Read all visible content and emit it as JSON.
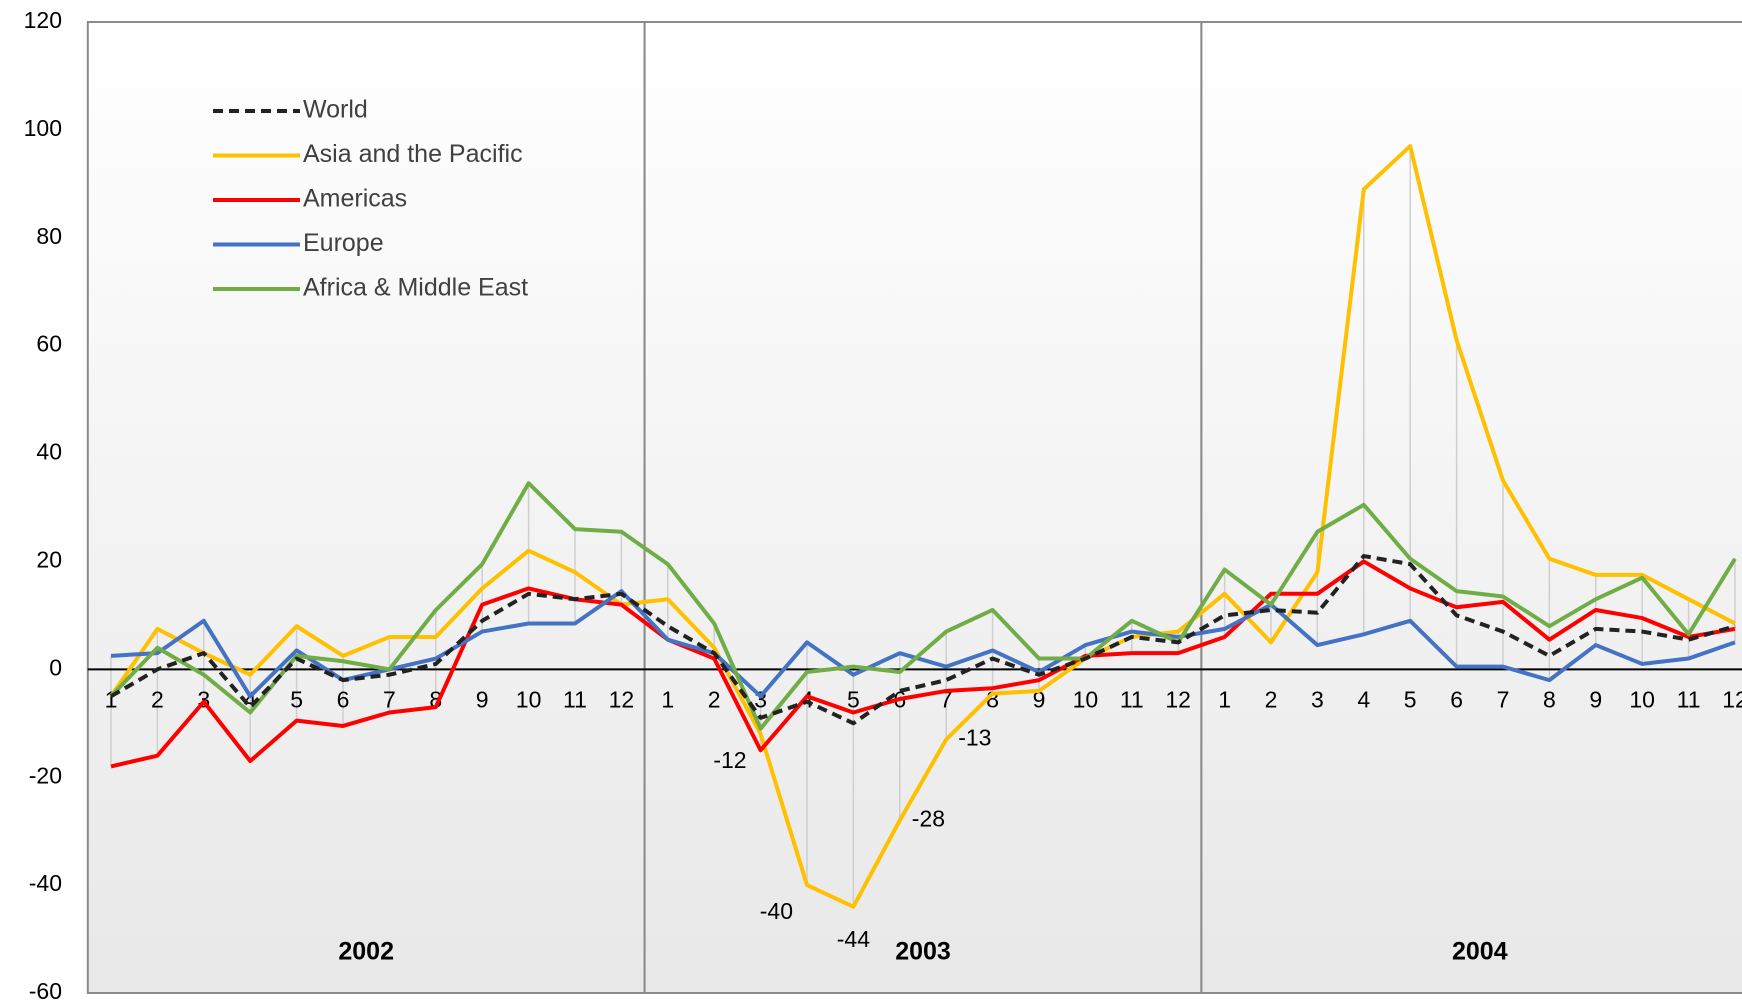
{
  "chart_data": {
    "type": "line",
    "categories": [
      "1",
      "2",
      "3",
      "4",
      "5",
      "6",
      "7",
      "8",
      "9",
      "10",
      "11",
      "12",
      "1",
      "2",
      "3",
      "4",
      "5",
      "6",
      "7",
      "8",
      "9",
      "10",
      "11",
      "12",
      "1",
      "2",
      "3",
      "4",
      "5",
      "6",
      "7",
      "8",
      "9",
      "10",
      "11",
      "12"
    ],
    "groups": [
      {
        "label": "2002",
        "size": 12
      },
      {
        "label": "2003",
        "size": 12
      },
      {
        "label": "2004",
        "size": 12
      }
    ],
    "ylim": [
      -60,
      120
    ],
    "yticks": [
      -60,
      -40,
      -20,
      0,
      20,
      40,
      60,
      80,
      100,
      120
    ],
    "legend_loc": "upper left",
    "series": [
      {
        "name": "World",
        "color": "#222222",
        "dashed": true,
        "values": [
          -5,
          0,
          3,
          -7,
          2,
          -2,
          -1,
          1,
          9,
          14,
          13,
          14,
          8,
          3,
          -9,
          -6,
          -10,
          -4,
          -2,
          2,
          -1,
          2,
          6,
          5,
          10,
          11,
          10.5,
          21,
          19.5,
          10,
          7,
          2.5,
          7.5,
          7,
          5.5,
          8
        ]
      },
      {
        "name": "Asia and the Pacific",
        "color": "#ffc000",
        "values": [
          -5,
          7.5,
          3,
          -1,
          8,
          2.5,
          6,
          6,
          15,
          22,
          18,
          12,
          13,
          4,
          -12,
          -40,
          -44,
          -28,
          -13,
          -4.5,
          -4,
          2,
          6,
          7,
          14,
          5,
          18,
          89,
          97,
          61,
          35,
          20.5,
          17.5,
          17.5,
          13,
          8.5
        ],
        "value_labels": [
          null,
          null,
          null,
          null,
          null,
          null,
          null,
          null,
          null,
          null,
          null,
          null,
          null,
          null,
          "-12",
          "-40",
          "-44",
          "-28",
          "-13",
          null,
          null,
          null,
          null,
          null,
          null,
          null,
          null,
          null,
          null,
          null,
          null,
          null,
          null,
          null,
          null,
          null
        ]
      },
      {
        "name": "Americas",
        "color": "#ff0000",
        "values": [
          -18,
          -16,
          -6,
          -17,
          -9.5,
          -10.5,
          -8,
          -7,
          12,
          15,
          13,
          12,
          5.5,
          2,
          -15,
          -5,
          -8,
          -5.5,
          -4,
          -3.5,
          -2,
          2.5,
          3,
          3,
          6,
          14,
          14,
          20,
          15,
          11.5,
          12.5,
          5.5,
          11,
          9.5,
          6,
          7.5
        ]
      },
      {
        "name": "Europe",
        "color": "#4472c4",
        "values": [
          2.5,
          3,
          9,
          -5,
          3.5,
          -2,
          0,
          2,
          7,
          8.5,
          8.5,
          14.5,
          5.5,
          3,
          -5,
          5,
          -1,
          3,
          0.5,
          3.5,
          -0.5,
          4.5,
          7,
          6,
          7.5,
          12,
          4.5,
          6.5,
          9,
          0.5,
          0.5,
          -2,
          4.5,
          1,
          2,
          5
        ]
      },
      {
        "name": "Africa & Middle East",
        "color": "#70ad47",
        "values": [
          -5,
          4,
          -1,
          -8,
          2.5,
          1.5,
          0,
          11,
          19.5,
          34.5,
          26,
          25.5,
          19.5,
          8.5,
          -11,
          -0.5,
          0.5,
          -0.5,
          7,
          11,
          2,
          2,
          9,
          5,
          18.5,
          12,
          25.5,
          30.5,
          20.5,
          14.5,
          13.5,
          8,
          13,
          17,
          6.5,
          20.5
        ]
      }
    ]
  }
}
